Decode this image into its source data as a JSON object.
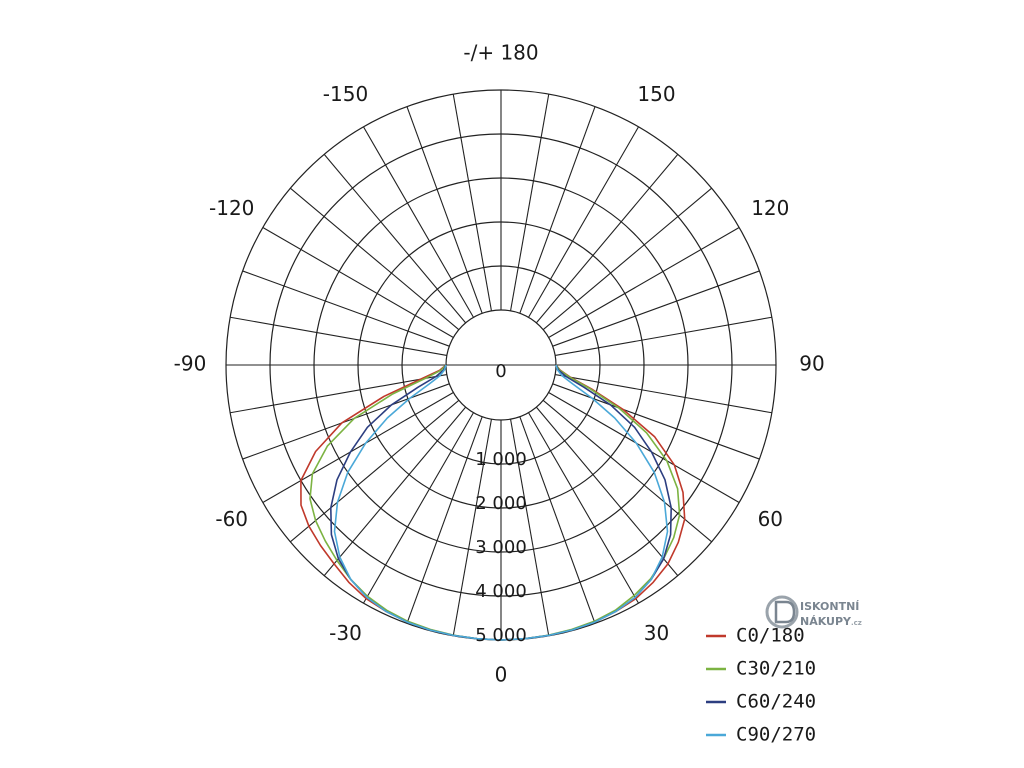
{
  "chart_data": {
    "type": "line",
    "polar": true,
    "angle_labels": [
      {
        "angle": 180,
        "text": "-/+ 180"
      },
      {
        "angle": -150,
        "text": "-150"
      },
      {
        "angle": 150,
        "text": "150"
      },
      {
        "angle": -120,
        "text": "-120"
      },
      {
        "angle": 120,
        "text": "120"
      },
      {
        "angle": -90,
        "text": "-90"
      },
      {
        "angle": 90,
        "text": "90"
      },
      {
        "angle": -60,
        "text": "-60"
      },
      {
        "angle": 60,
        "text": "60"
      },
      {
        "angle": -30,
        "text": "-30"
      },
      {
        "angle": 30,
        "text": "30"
      },
      {
        "angle": 0,
        "text": "0"
      }
    ],
    "radial_ticks": [
      0,
      1000,
      2000,
      3000,
      4000,
      5000
    ],
    "radial_tick_labels": [
      "0",
      "1 000",
      "2 000",
      "3 000",
      "4 000",
      "5 000"
    ],
    "r_range": [
      0,
      5000
    ],
    "angle_step": 10,
    "grid": true,
    "legend": "bottom-right",
    "series": [
      {
        "name": "C0/180",
        "color": "#c0392b",
        "angles": [
          -90,
          -85,
          -80,
          -75,
          -70,
          -65,
          -60,
          -55,
          -50,
          -45,
          -40,
          -35,
          -30,
          -25,
          -20,
          -15,
          -10,
          -5,
          0,
          5,
          10,
          15,
          20,
          25,
          30,
          35,
          40,
          45,
          50,
          55,
          60,
          65,
          70,
          75,
          80,
          85,
          90
        ],
        "values": [
          0,
          150,
          600,
          1500,
          2600,
          3400,
          4000,
          4300,
          4450,
          4550,
          4650,
          4780,
          4880,
          4930,
          4960,
          4980,
          4990,
          4995,
          5000,
          4995,
          4990,
          4980,
          4960,
          4930,
          4880,
          4780,
          4650,
          4450,
          4200,
          3800,
          3300,
          2600,
          1700,
          900,
          350,
          100,
          0
        ]
      },
      {
        "name": "C30/210",
        "color": "#7cb342",
        "angles": [
          -90,
          -85,
          -80,
          -75,
          -70,
          -65,
          -60,
          -55,
          -50,
          -45,
          -40,
          -35,
          -30,
          -25,
          -20,
          -15,
          -10,
          -5,
          0,
          5,
          10,
          15,
          20,
          25,
          30,
          35,
          40,
          45,
          50,
          55,
          60,
          65,
          70,
          75,
          80,
          85,
          90
        ],
        "values": [
          0,
          120,
          500,
          1300,
          2300,
          3100,
          3700,
          4050,
          4250,
          4400,
          4550,
          4700,
          4820,
          4900,
          4950,
          4970,
          4985,
          4995,
          5000,
          4995,
          4985,
          4970,
          4950,
          4900,
          4800,
          4680,
          4500,
          4300,
          4050,
          3650,
          3100,
          2400,
          1600,
          850,
          330,
          90,
          0
        ]
      },
      {
        "name": "C60/240",
        "color": "#2c3e80",
        "angles": [
          -90,
          -85,
          -80,
          -75,
          -70,
          -65,
          -60,
          -55,
          -50,
          -45,
          -40,
          -35,
          -30,
          -25,
          -20,
          -15,
          -10,
          -5,
          0,
          5,
          10,
          15,
          20,
          25,
          30,
          35,
          40,
          45,
          50,
          55,
          60,
          65,
          70,
          75,
          80,
          85,
          90
        ],
        "values": [
          0,
          60,
          250,
          700,
          1400,
          2100,
          2700,
          3300,
          3800,
          4200,
          4500,
          4700,
          4850,
          4930,
          4970,
          4985,
          4990,
          4995,
          5000,
          4995,
          4990,
          4985,
          4970,
          4930,
          4850,
          4700,
          4500,
          4200,
          3800,
          3300,
          2700,
          2100,
          1400,
          700,
          250,
          60,
          0
        ]
      },
      {
        "name": "C90/270",
        "color": "#4aa8d8",
        "angles": [
          -90,
          -85,
          -80,
          -75,
          -70,
          -65,
          -60,
          -55,
          -50,
          -45,
          -40,
          -35,
          -30,
          -25,
          -20,
          -15,
          -10,
          -5,
          0,
          5,
          10,
          15,
          20,
          25,
          30,
          35,
          40,
          45,
          50,
          55,
          60,
          65,
          70,
          75,
          80,
          85,
          90
        ],
        "values": [
          0,
          40,
          160,
          450,
          950,
          1600,
          2300,
          3000,
          3600,
          4100,
          4450,
          4700,
          4850,
          4930,
          4970,
          4985,
          4990,
          4995,
          5000,
          4995,
          4990,
          4985,
          4970,
          4930,
          4850,
          4700,
          4450,
          4100,
          3600,
          3000,
          2300,
          1600,
          950,
          450,
          160,
          40,
          0
        ]
      }
    ]
  },
  "logo": {
    "line1": "ISKONTNÍ",
    "line2": "NÁKUPY",
    "suffix": ".cz",
    "colors": {
      "gray": "#7a8590",
      "light": "#9aa3ab"
    }
  }
}
